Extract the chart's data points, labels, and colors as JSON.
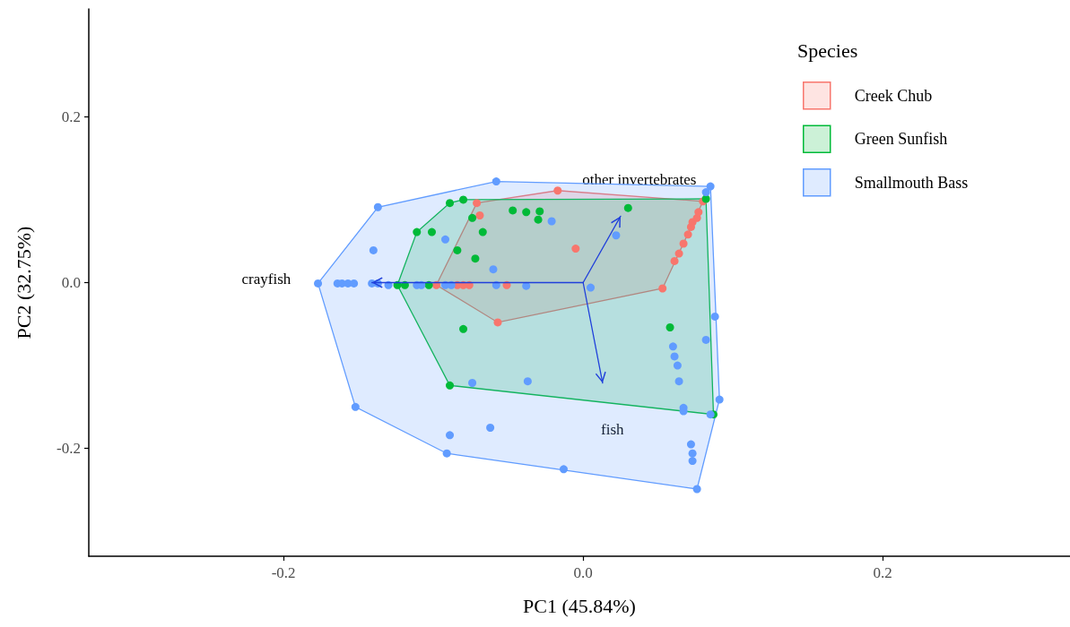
{
  "chart_data": {
    "type": "scatter",
    "xlabel": "PC1 (45.84%)",
    "ylabel": "PC2 (32.75%)",
    "legend_title": "Species",
    "legend": "top right",
    "grid": false,
    "xlim": [
      -0.33,
      0.325
    ],
    "ylim": [
      -0.33,
      0.33
    ],
    "xticks": [
      -0.2,
      {
        "value": 0,
        "label": "0.0"
      },
      0.2
    ],
    "yticks": [
      -0.2,
      {
        "value": 0,
        "label": "0.0"
      },
      0.2
    ],
    "series": [
      {
        "type": "area",
        "color": "#f8766d",
        "x": [
          -0.098,
          -0.071,
          -0.017,
          0.08,
          0.053,
          -0.057
        ],
        "values": [
          -0.003,
          0.096,
          0.111,
          0.098,
          -0.007,
          -0.048
        ]
      },
      {
        "type": "area",
        "color": "#00ba38",
        "x": [
          -0.124,
          -0.111,
          -0.089,
          -0.08,
          0.082,
          0.087,
          -0.089
        ],
        "values": [
          -0.003,
          0.061,
          0.096,
          0.1,
          0.101,
          -0.159,
          -0.124
        ]
      },
      {
        "type": "area",
        "color": "#619cff",
        "x": [
          -0.177,
          -0.137,
          -0.058,
          0.085,
          0.091,
          0.076,
          -0.091,
          -0.152
        ],
        "values": [
          -0.001,
          0.091,
          0.122,
          0.116,
          -0.141,
          -0.249,
          -0.206,
          -0.15
        ]
      },
      {
        "name": "Creek Chub",
        "color": "#f8766d",
        "marker": "circle",
        "x": [
          -0.071,
          -0.069,
          -0.098,
          -0.084,
          -0.08,
          -0.076,
          -0.051,
          -0.057,
          -0.017,
          -0.005,
          0.053,
          0.061,
          0.064,
          0.067,
          0.07,
          0.072,
          0.073,
          0.076,
          0.077,
          0.08
        ],
        "values": [
          0.096,
          0.081,
          -0.003,
          -0.003,
          -0.003,
          -0.003,
          -0.003,
          -0.048,
          0.111,
          0.041,
          -0.007,
          0.026,
          0.035,
          0.047,
          0.058,
          0.067,
          0.073,
          0.078,
          0.085,
          0.098
        ]
      },
      {
        "name": "Green Sunfish",
        "color": "#00ba38",
        "marker": "circle",
        "x": [
          -0.089,
          -0.08,
          -0.047,
          -0.074,
          -0.111,
          -0.101,
          -0.067,
          -0.084,
          -0.072,
          -0.124,
          -0.119,
          -0.103,
          -0.08,
          -0.089,
          -0.038,
          -0.029,
          -0.03,
          0.03,
          0.082,
          0.058,
          0.087
        ],
        "values": [
          0.096,
          0.1,
          0.087,
          0.078,
          0.061,
          0.061,
          0.061,
          0.039,
          0.029,
          -0.003,
          -0.003,
          -0.003,
          -0.056,
          -0.124,
          0.085,
          0.086,
          0.076,
          0.09,
          0.101,
          -0.054,
          -0.159
        ]
      },
      {
        "name": "Smallmouth Bass",
        "color": "#619cff",
        "marker": "circle",
        "x": [
          -0.058,
          -0.137,
          -0.092,
          -0.14,
          -0.06,
          -0.177,
          -0.164,
          -0.161,
          -0.157,
          -0.153,
          -0.141,
          -0.137,
          -0.13,
          -0.111,
          -0.108,
          -0.092,
          -0.088,
          -0.058,
          -0.038,
          0.005,
          -0.021,
          0.022,
          0.085,
          0.082,
          0.088,
          0.082,
          0.06,
          0.061,
          0.063,
          0.064,
          -0.037,
          -0.074,
          0.091,
          0.067,
          0.067,
          0.085,
          0.072,
          0.073,
          0.073,
          -0.013,
          0.076,
          -0.152,
          -0.062,
          -0.089,
          -0.091
        ],
        "values": [
          0.122,
          0.091,
          0.052,
          0.039,
          0.016,
          -0.001,
          -0.001,
          -0.001,
          -0.001,
          -0.001,
          -0.001,
          -0.001,
          -0.003,
          -0.003,
          -0.003,
          -0.003,
          -0.003,
          -0.003,
          -0.004,
          -0.006,
          0.074,
          0.057,
          0.116,
          0.109,
          -0.041,
          -0.069,
          -0.077,
          -0.089,
          -0.1,
          -0.119,
          -0.119,
          -0.121,
          -0.141,
          -0.151,
          -0.155,
          -0.159,
          -0.195,
          -0.206,
          -0.215,
          -0.225,
          -0.249,
          -0.15,
          -0.175,
          -0.184,
          -0.206
        ]
      },
      {
        "type": "line",
        "color": "#1f3fdb",
        "x": [
          0,
          -0.141
        ],
        "values": [
          0,
          0
        ]
      },
      {
        "type": "line",
        "color": "#1f3fdb",
        "x": [
          0,
          0.025
        ],
        "values": [
          0,
          0.08
        ]
      },
      {
        "type": "line",
        "color": "#1f3fdb",
        "x": [
          0,
          0.013
        ],
        "values": [
          0,
          -0.121
        ]
      }
    ],
    "annotations": [
      "crayfish",
      "other invertebrates",
      "fish"
    ]
  }
}
